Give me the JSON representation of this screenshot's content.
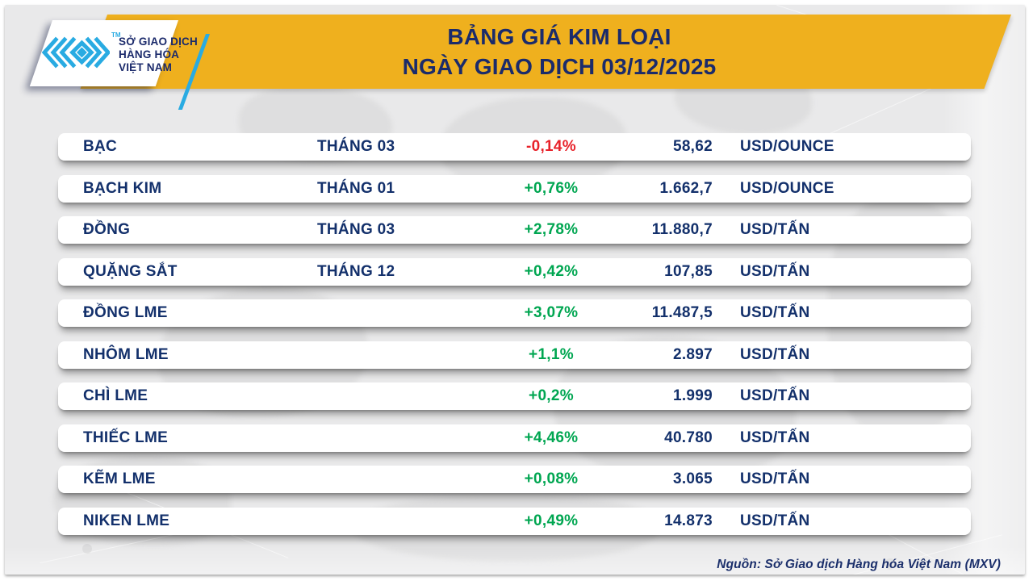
{
  "colors": {
    "banner_yellow": "#EFB01E",
    "navy_text": "#13306B",
    "up_green": "#00A651",
    "down_red": "#E8222A",
    "logo_cyan": "#29ABE2",
    "card_gray": "#e9e9ea"
  },
  "header": {
    "logo": {
      "icon": "mxv-chevron-diamond-logo",
      "trademark": "TM",
      "org_line1": "SỞ GIAO DỊCH",
      "org_line2": "HÀNG HÓA",
      "org_line3": "VIỆT NAM"
    },
    "title_line1": "BẢNG GIÁ KIM LOẠI",
    "title_line2": "NGÀY GIAO DỊCH 03/12/2025"
  },
  "board": {
    "rows": [
      {
        "name": "BẠC",
        "month": "THÁNG 03",
        "change": "-0,14%",
        "direction": "down",
        "price": "58,62",
        "unit": "USD/OUNCE"
      },
      {
        "name": "BẠCH KIM",
        "month": "THÁNG 01",
        "change": "+0,76%",
        "direction": "up",
        "price": "1.662,7",
        "unit": "USD/OUNCE"
      },
      {
        "name": "ĐỒNG",
        "month": "THÁNG 03",
        "change": "+2,78%",
        "direction": "up",
        "price": "11.880,7",
        "unit": "USD/TẤN"
      },
      {
        "name": "QUẶNG SẮT",
        "month": "THÁNG 12",
        "change": "+0,42%",
        "direction": "up",
        "price": "107,85",
        "unit": "USD/TẤN"
      },
      {
        "name": "ĐỒNG LME",
        "month": "",
        "change": "+3,07%",
        "direction": "up",
        "price": "11.487,5",
        "unit": "USD/TẤN"
      },
      {
        "name": "NHÔM LME",
        "month": "",
        "change": "+1,1%",
        "direction": "up",
        "price": "2.897",
        "unit": "USD/TẤN"
      },
      {
        "name": "CHÌ LME",
        "month": "",
        "change": "+0,2%",
        "direction": "up",
        "price": "1.999",
        "unit": "USD/TẤN"
      },
      {
        "name": "THIẾC LME",
        "month": "",
        "change": "+4,46%",
        "direction": "up",
        "price": "40.780",
        "unit": "USD/TẤN"
      },
      {
        "name": "KẼM LME",
        "month": "",
        "change": "+0,08%",
        "direction": "up",
        "price": "3.065",
        "unit": "USD/TẤN"
      },
      {
        "name": "NIKEN LME",
        "month": "",
        "change": "+0,49%",
        "direction": "up",
        "price": "14.873",
        "unit": "USD/TẤN"
      }
    ]
  },
  "footer": {
    "source": "Nguồn: Sở Giao dịch Hàng hóa Việt Nam (MXV)"
  },
  "chart_data": {
    "type": "table",
    "title": "BẢNG GIÁ KIM LOẠI",
    "subtitle": "NGÀY GIAO DỊCH 03/12/2025",
    "rows": [
      {
        "name": "BẠC",
        "month": "THÁNG 03",
        "change_pct": -0.14,
        "price": 58.62,
        "unit": "USD/OUNCE"
      },
      {
        "name": "BẠCH KIM",
        "month": "THÁNG 01",
        "change_pct": 0.76,
        "price": 1662.7,
        "unit": "USD/OUNCE"
      },
      {
        "name": "ĐỒNG",
        "month": "THÁNG 03",
        "change_pct": 2.78,
        "price": 11880.7,
        "unit": "USD/TẤN"
      },
      {
        "name": "QUẶNG SẮT",
        "month": "THÁNG 12",
        "change_pct": 0.42,
        "price": 107.85,
        "unit": "USD/TẤN"
      },
      {
        "name": "ĐỒNG LME",
        "month": "",
        "change_pct": 3.07,
        "price": 11487.5,
        "unit": "USD/TẤN"
      },
      {
        "name": "NHÔM LME",
        "month": "",
        "change_pct": 1.1,
        "price": 2897,
        "unit": "USD/TẤN"
      },
      {
        "name": "CHÌ LME",
        "month": "",
        "change_pct": 0.2,
        "price": 1999,
        "unit": "USD/TẤN"
      },
      {
        "name": "THIẾC LME",
        "month": "",
        "change_pct": 4.46,
        "price": 40780,
        "unit": "USD/TẤN"
      },
      {
        "name": "KẼM LME",
        "month": "",
        "change_pct": 0.08,
        "price": 3065,
        "unit": "USD/TẤN"
      },
      {
        "name": "NIKEN LME",
        "month": "",
        "change_pct": 0.49,
        "price": 14873,
        "unit": "USD/TẤN"
      }
    ],
    "source": "Nguồn: Sở Giao dịch Hàng hóa Việt Nam (MXV)"
  }
}
